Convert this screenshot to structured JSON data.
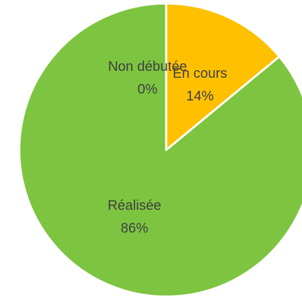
{
  "chart_data": {
    "type": "pie",
    "slices": [
      {
        "name": "Non débutée",
        "label": "Non débutée",
        "value_label": "0%",
        "value": 0,
        "color": "#ED7D31"
      },
      {
        "name": "En cours",
        "label": "En cours",
        "value_label": "14%",
        "value": 14,
        "color": "#FFC000"
      },
      {
        "name": "Réalisée",
        "label": "Réalisée",
        "value_label": "86%",
        "value": 86,
        "color": "#7DC440"
      }
    ],
    "start_angle_deg": 0,
    "direction": "clockwise",
    "slice_border_color": "#FFFFFF"
  }
}
